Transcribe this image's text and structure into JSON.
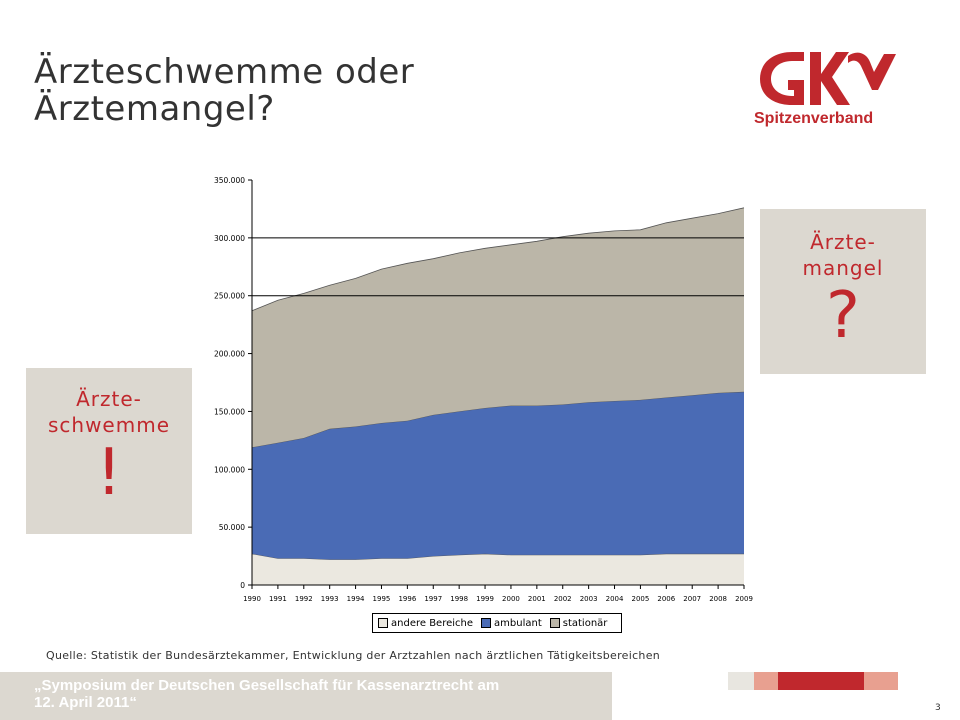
{
  "slide": {
    "title_line1": "Ärzteschwemme oder",
    "title_line2": "Ärztemangel?",
    "logo_text": "Spitzenverband",
    "source": "Quelle: Statistik der Bundesärztekammer,  Entwicklung der Arztzahlen  nach ärztlichen Tätigkeitsbereichen",
    "footer_line1": "„Symposium der Deutschen Gesellschaft für Kassenarztrecht am",
    "footer_line2": "12. April 2011“",
    "page_number": "3"
  },
  "callouts": {
    "left": {
      "line1": "Ärzte-",
      "line2": "schwemme",
      "mark": "!"
    },
    "right": {
      "line1": "Ärzte-",
      "line2": "mangel",
      "mark": "?"
    }
  },
  "colors": {
    "brand_red": "#c0282d",
    "callout_bg": "#dcd8d0",
    "andere": "#ebe8e0",
    "ambulant": "#4a6bb5",
    "stationaer": "#bbb6a8"
  },
  "chart_data": {
    "type": "area",
    "stacked": true,
    "x": [
      "1990",
      "1991",
      "1992",
      "1993",
      "1994",
      "1995",
      "1996",
      "1997",
      "1998",
      "1999",
      "2000",
      "2001",
      "2002",
      "2003",
      "2004",
      "2005",
      "2006",
      "2007",
      "2008",
      "2009"
    ],
    "series": [
      {
        "name": "andere Bereiche",
        "color": "#ebe8e0",
        "values": [
          27000,
          23000,
          23000,
          22000,
          22000,
          23000,
          23000,
          25000,
          26000,
          27000,
          26000,
          26000,
          26000,
          26000,
          26000,
          26000,
          27000,
          27000,
          27000,
          27000
        ]
      },
      {
        "name": "ambulant",
        "color": "#4a6bb5",
        "values": [
          92000,
          100000,
          104000,
          113000,
          115000,
          117000,
          119000,
          122000,
          124000,
          126000,
          129000,
          129000,
          130000,
          132000,
          133000,
          134000,
          135000,
          137000,
          139000,
          140000
        ]
      },
      {
        "name": "stationär",
        "color": "#bbb6a8",
        "values": [
          118000,
          123000,
          125000,
          124000,
          128000,
          133000,
          136000,
          135000,
          137000,
          138000,
          139000,
          142000,
          145000,
          146000,
          147000,
          147000,
          151000,
          153000,
          155000,
          159000
        ]
      }
    ],
    "y_ticks": [
      "0",
      "50.000",
      "100.000",
      "150.000",
      "200.000",
      "250.000",
      "300.000",
      "350.000"
    ],
    "ylim": [
      0,
      350000
    ],
    "grid": "horizontal lines at 300.000 and 250.000",
    "legend_position": "bottom"
  }
}
